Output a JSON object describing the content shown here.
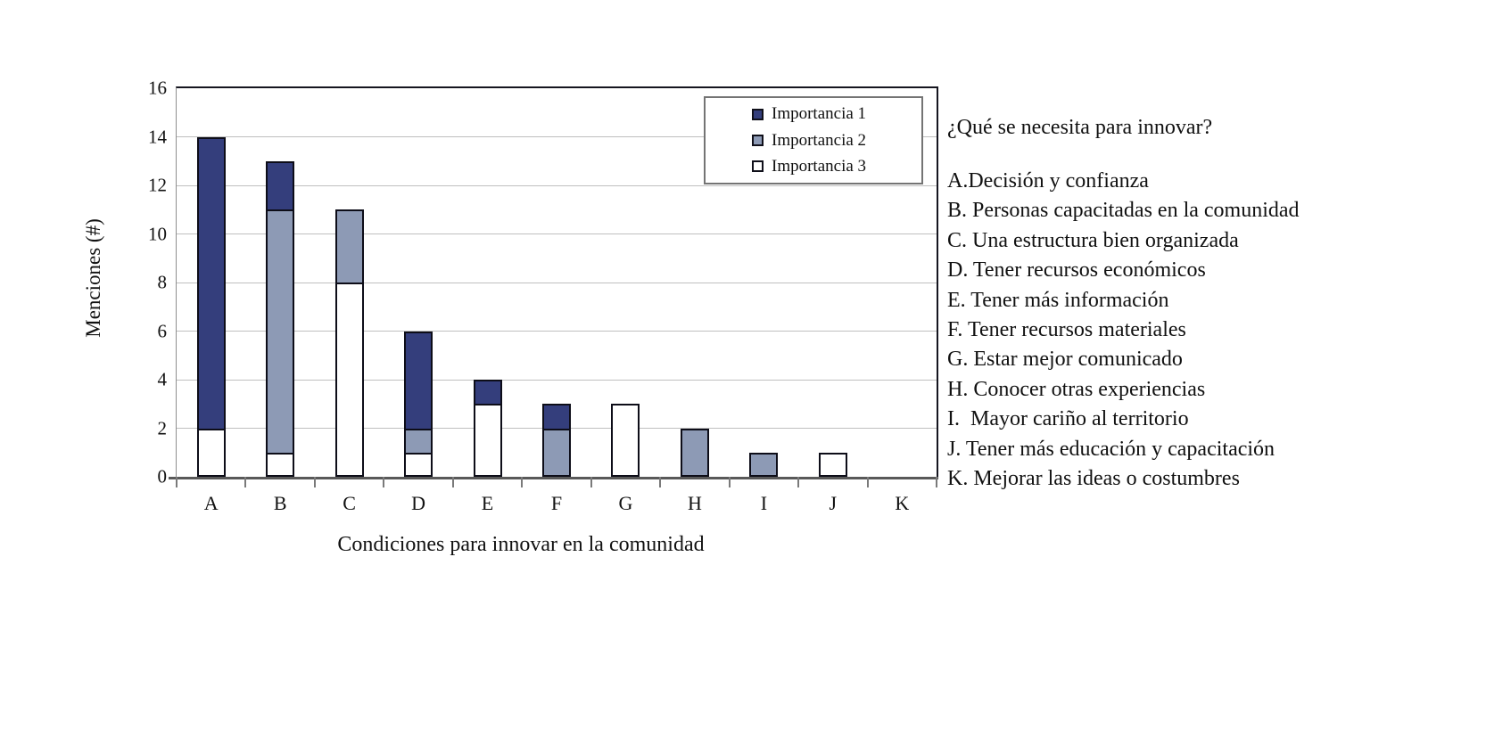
{
  "page": {
    "background": "#ffffff"
  },
  "colors": {
    "importancia1": "#343E7C",
    "importancia2": "#8D9AB5",
    "importancia3": "#FFFFFF",
    "bar_border": "#0d0d18",
    "gridline": "#bfbfbf",
    "bottom_axis": "#595959",
    "plot_border": "#15151f",
    "legend_border": "#747474"
  },
  "chart_data": {
    "type": "bar",
    "stacked": true,
    "title": "",
    "xlabel": "Condiciones para innovar en la comunidad",
    "ylabel": "Menciones (#)",
    "ylim": [
      0,
      16
    ],
    "ytick_step": 2,
    "y_tick_labels": [
      "0",
      "2",
      "4",
      "6",
      "8",
      "10",
      "12",
      "14",
      "16"
    ],
    "grid": true,
    "legend_position": "top-right inside plot area",
    "categories": [
      "A",
      "B",
      "C",
      "D",
      "E",
      "F",
      "G",
      "H",
      "I",
      "J",
      "K"
    ],
    "stack_order_bottom_to_top": [
      "Importancia 3",
      "Importancia 2",
      "Importancia 1"
    ],
    "series": [
      {
        "name": "Importancia 1",
        "color": "#343E7C",
        "values": [
          12,
          2,
          0,
          4,
          1,
          1,
          0,
          0,
          0,
          0,
          0
        ]
      },
      {
        "name": "Importancia 2",
        "color": "#8D9AB5",
        "values": [
          0,
          10,
          3,
          1,
          0,
          2,
          0,
          2,
          1,
          0,
          0
        ]
      },
      {
        "name": "Importancia 3",
        "color": "#FFFFFF",
        "values": [
          2,
          1,
          8,
          1,
          3,
          0,
          3,
          0,
          0,
          1,
          0
        ]
      }
    ],
    "totals": [
      14,
      13,
      11,
      6,
      4,
      3,
      3,
      2,
      1,
      1,
      0
    ]
  },
  "legend": {
    "items": [
      {
        "label": "Importancia 1",
        "color": "#343E7C"
      },
      {
        "label": "Importancia 2",
        "color": "#8D9AB5"
      },
      {
        "label": "Importancia 3",
        "color": "#FFFFFF"
      }
    ]
  },
  "side_panel": {
    "title": "¿Qué se necesita para innovar?",
    "items": [
      "A.Decisión y confianza",
      "B. Personas capacitadas en la comunidad",
      "C. Una estructura bien organizada",
      "D. Tener recursos económicos",
      "E. Tener más información",
      "F. Tener recursos materiales",
      "G. Estar mejor comunicado",
      "H. Conocer otras experiencias",
      "I.  Mayor cariño al territorio",
      "J. Tener más educación y capacitación",
      "K. Mejorar las ideas o costumbres"
    ]
  }
}
